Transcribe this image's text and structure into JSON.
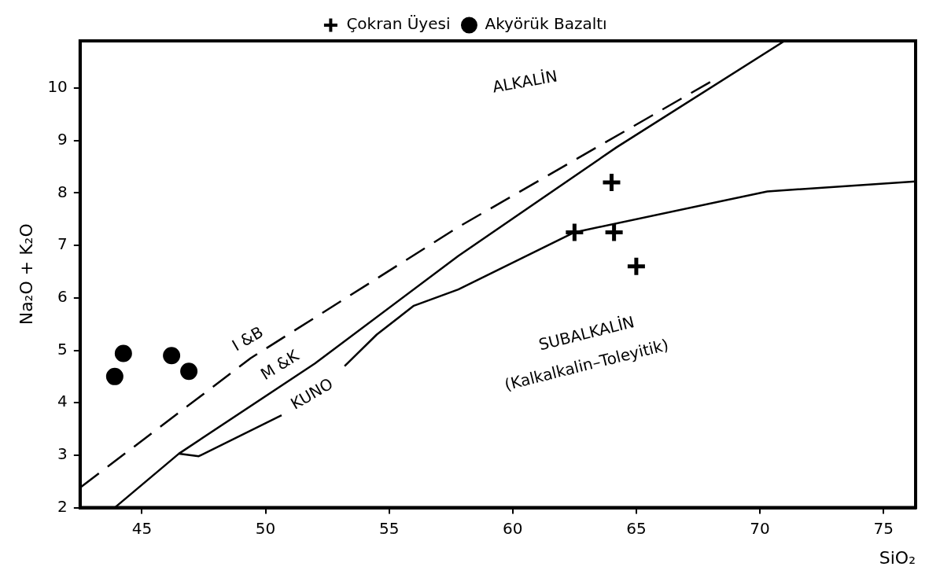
{
  "chart_data": {
    "type": "scatter",
    "xlabel": "SiO₂",
    "ylabel": "Na₂O + K₂O",
    "legend": "top",
    "grid": false,
    "xlim": [
      42.5,
      76.3
    ],
    "xticks": [
      45,
      50,
      55,
      60,
      65,
      70,
      75
    ],
    "ylim": [
      2,
      10.9
    ],
    "yticks": [
      2,
      3,
      4,
      5,
      6,
      7,
      8,
      9,
      10
    ],
    "series": [
      {
        "name": "Çokran Üyesi",
        "marker": "cross",
        "color": "#000000",
        "x": [
          62.5,
          64.1,
          64.0,
          65.0
        ],
        "values": [
          7.25,
          7.25,
          8.2,
          6.6
        ]
      },
      {
        "name": "Akyörük Bazaltı",
        "marker": "circle",
        "color": "#000000",
        "x": [
          43.9,
          44.25,
          46.2,
          46.9
        ],
        "values": [
          4.5,
          4.94,
          4.9,
          4.6
        ]
      },
      {
        "type": "line",
        "marker": "none",
        "line_style": "dashed",
        "color": "#000000",
        "x": [
          42.55,
          49.4,
          57.8,
          68.3
        ],
        "values": [
          2.4,
          4.85,
          7.35,
          10.2
        ]
      },
      {
        "type": "line",
        "marker": "none",
        "line_style": "solid",
        "color": "#000000",
        "x": [
          43.9,
          46.5,
          52.0,
          57.8,
          64.2,
          71.0
        ],
        "values": [
          2.0,
          3.03,
          4.75,
          6.8,
          8.87,
          10.9
        ]
      },
      {
        "type": "line",
        "marker": "none",
        "line_style": "solid",
        "color": "#000000",
        "x": [
          46.5,
          47.3,
          50.65,
          51.9,
          53.2,
          54.5,
          56.0,
          57.8,
          62.5,
          70.3,
          76.3
        ],
        "values": [
          3.03,
          2.98,
          3.76,
          null,
          4.7,
          5.3,
          5.85,
          6.16,
          7.25,
          8.03,
          8.22
        ]
      }
    ],
    "annotations": [
      "ALKALİN",
      "I &B",
      "M &K",
      "KUNO",
      "SUBALKALİN",
      "(Kalkalkalin–Toleyitik)"
    ]
  }
}
